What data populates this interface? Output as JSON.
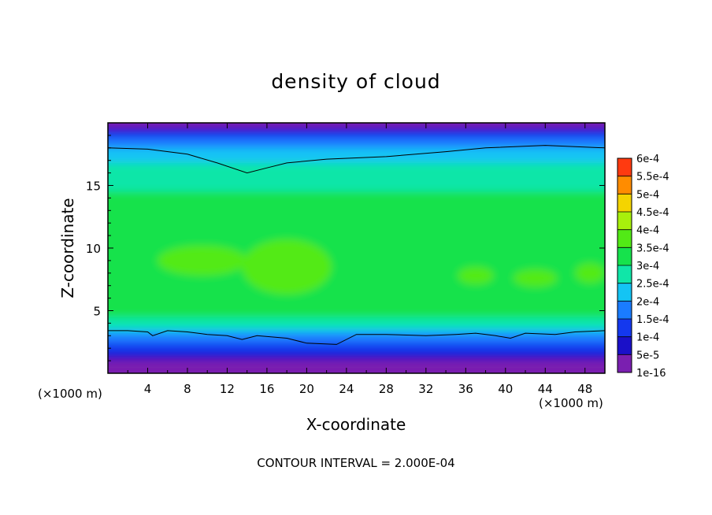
{
  "chart_data": {
    "type": "heatmap",
    "title": "density of cloud",
    "xlabel": "X-coordinate",
    "ylabel": "Z-coordinate",
    "x_unit_left": "(×1000 m)",
    "x_unit_right": "(×1000 m)",
    "footer": "CONTOUR INTERVAL = 2.000E-04",
    "xlim": [
      0,
      50
    ],
    "ylim": [
      0,
      20
    ],
    "x_ticks": [
      4,
      8,
      12,
      16,
      20,
      24,
      28,
      32,
      36,
      40,
      44,
      48
    ],
    "x_tick_labels": [
      "4",
      "8",
      "12",
      "16",
      "20",
      "24",
      "28",
      "32",
      "36",
      "40",
      "44",
      "48"
    ],
    "y_ticks": [
      5,
      10,
      15
    ],
    "y_tick_labels": [
      "5",
      "10",
      "15"
    ],
    "colorbar": {
      "levels": [
        "1e-16",
        "5e-5",
        "1e-4",
        "1.5e-4",
        "2e-4",
        "2.5e-4",
        "3e-4",
        "3.5e-4",
        "4e-4",
        "4.5e-4",
        "5e-4",
        "5.5e-4",
        "6e-4"
      ],
      "colors": [
        "#7a1fb0",
        "#1a10c8",
        "#1438ee",
        "#1a7cff",
        "#14c4f4",
        "#10e6a8",
        "#16e24c",
        "#52ea16",
        "#a8f00c",
        "#f4d400",
        "#ff8c00",
        "#ff3a10",
        "#ff6a6a"
      ]
    },
    "contour_lines": [
      {
        "value": "2e-4",
        "points": [
          [
            0,
            18.0
          ],
          [
            4,
            17.9
          ],
          [
            8,
            17.5
          ],
          [
            11,
            16.8
          ],
          [
            14,
            16.0
          ],
          [
            16,
            16.4
          ],
          [
            18,
            16.8
          ],
          [
            22,
            17.1
          ],
          [
            28,
            17.3
          ],
          [
            34,
            17.7
          ],
          [
            38,
            18.0
          ],
          [
            44,
            18.2
          ],
          [
            50,
            18.0
          ]
        ]
      },
      {
        "value": "1.5e-4",
        "points": [
          [
            0,
            3.4
          ],
          [
            2,
            3.4
          ],
          [
            4,
            3.3
          ],
          [
            4.5,
            3.0
          ],
          [
            6,
            3.4
          ],
          [
            8,
            3.3
          ],
          [
            10,
            3.1
          ],
          [
            12,
            3.0
          ],
          [
            13.5,
            2.7
          ],
          [
            15,
            3.0
          ],
          [
            18,
            2.8
          ],
          [
            20,
            2.4
          ],
          [
            23,
            2.3
          ],
          [
            25,
            3.1
          ],
          [
            28,
            3.1
          ],
          [
            32,
            3.0
          ],
          [
            35,
            3.1
          ],
          [
            37,
            3.2
          ],
          [
            39,
            3.0
          ],
          [
            40.5,
            2.8
          ],
          [
            42,
            3.2
          ],
          [
            45,
            3.1
          ],
          [
            47,
            3.3
          ],
          [
            50,
            3.4
          ]
        ]
      }
    ],
    "bands": [
      {
        "level": "3.5e-4",
        "regions": [
          {
            "cx": 9.5,
            "cy": 9.0,
            "rx": 4.5,
            "ry": 1.2
          },
          {
            "cx": 18,
            "cy": 8.5,
            "rx": 4.5,
            "ry": 2.2
          },
          {
            "cx": 37,
            "cy": 7.8,
            "rx": 1.8,
            "ry": 0.7
          },
          {
            "cx": 43,
            "cy": 7.6,
            "rx": 2.2,
            "ry": 0.7
          },
          {
            "cx": 48.5,
            "cy": 8.0,
            "rx": 1.5,
            "ry": 0.8
          }
        ]
      },
      {
        "level": "3e-4",
        "band": [
          4.5,
          14.5
        ]
      },
      {
        "level": "2.5e-4",
        "band": [
          3.6,
          16.8
        ]
      },
      {
        "level": "2e-4",
        "band": [
          3.2,
          18.0
        ]
      },
      {
        "level": "1.5e-4",
        "band": [
          2.4,
          18.8
        ]
      },
      {
        "level": "1e-4",
        "band": [
          1.6,
          19.3
        ]
      },
      {
        "level": "5e-5",
        "band": [
          1.1,
          19.6
        ]
      },
      {
        "level": "1e-16",
        "band": [
          0.7,
          20
        ]
      }
    ]
  }
}
